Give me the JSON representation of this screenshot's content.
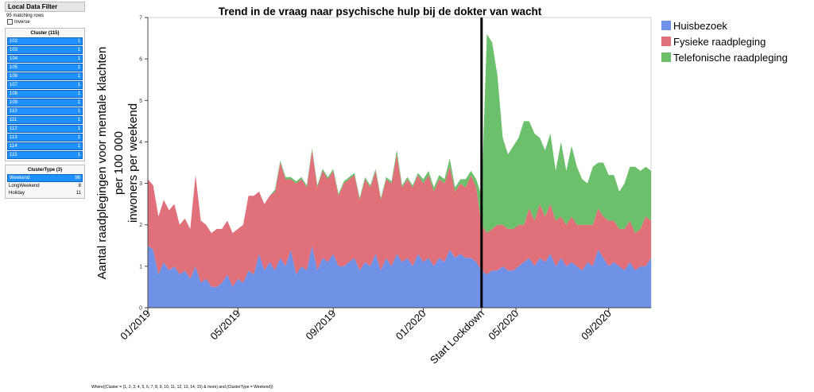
{
  "filter": {
    "header": "Local Data Filter",
    "matching": "95 matching rows",
    "inverse_label": "Inverse",
    "cluster_title": "Cluster (115)",
    "clusters": [
      {
        "label": "102",
        "count": "1"
      },
      {
        "label": "103",
        "count": "1"
      },
      {
        "label": "104",
        "count": "1"
      },
      {
        "label": "105",
        "count": "1"
      },
      {
        "label": "106",
        "count": "1"
      },
      {
        "label": "107",
        "count": "1"
      },
      {
        "label": "108",
        "count": "1"
      },
      {
        "label": "109",
        "count": "1"
      },
      {
        "label": "110",
        "count": "1"
      },
      {
        "label": "111",
        "count": "1"
      },
      {
        "label": "112",
        "count": "1"
      },
      {
        "label": "113",
        "count": "1"
      },
      {
        "label": "114",
        "count": "1"
      },
      {
        "label": "115",
        "count": "1"
      }
    ],
    "clustertype_title": "ClusterType (3)",
    "clustertypes": [
      {
        "label": "Weekend",
        "count": "96",
        "selected": true
      },
      {
        "label": "LongWeekend",
        "count": "8",
        "selected": false
      },
      {
        "label": "Holiday",
        "count": "11",
        "selected": false
      }
    ]
  },
  "where_text": "Where((Cluster = (1, 2, 3, 4, 5, 6, 7, 8, 9, 10, 11, 12, 13, 14, 15) & more) and (ClusterType = Weekend))",
  "colors": {
    "Huisbezoek": "#7092e6",
    "Fysieke raadpleging": "#e0707a",
    "Telefonische raadpleging": "#6cc06c",
    "lockdown_line": "#000000"
  },
  "chart_data": {
    "type": "area",
    "stacked": true,
    "title": "Trend in de vraag naar psychische hulp bij de dokter van wacht",
    "ylabel_lines": [
      "Aantal raadplegingen voor mentale klachten",
      "per 100 000",
      "inwoners per weekend"
    ],
    "xlabel": "",
    "ylim": [
      0,
      7
    ],
    "yticks": [
      0,
      1,
      2,
      3,
      4,
      5,
      6,
      7
    ],
    "xlim": [
      0,
      95
    ],
    "xticks": [
      {
        "x": 0,
        "label": "01/2019"
      },
      {
        "x": 17,
        "label": "05/2019"
      },
      {
        "x": 35,
        "label": "09/2019"
      },
      {
        "x": 52,
        "label": "01/2020"
      },
      {
        "x": 63,
        "label": "Start Lockdown"
      },
      {
        "x": 69.5,
        "label": "05/2020"
      },
      {
        "x": 87,
        "label": "09/2020"
      }
    ],
    "lockdown_x": 63,
    "legend_position": "right",
    "series": [
      {
        "name": "Huisbezoek",
        "values": [
          1.5,
          1.4,
          0.8,
          1.1,
          0.9,
          1.0,
          0.8,
          0.9,
          0.7,
          1.0,
          0.6,
          0.7,
          0.5,
          0.5,
          0.6,
          0.8,
          0.5,
          0.7,
          0.6,
          0.9,
          0.8,
          1.3,
          0.9,
          1.1,
          0.9,
          1.2,
          1.0,
          1.4,
          0.8,
          1.0,
          0.9,
          1.5,
          0.9,
          1.2,
          1.1,
          1.3,
          1.0,
          1.0,
          1.1,
          1.2,
          0.9,
          1.1,
          1.0,
          1.3,
          0.9,
          1.2,
          1.0,
          1.3,
          1.1,
          1.2,
          1.0,
          1.3,
          1.1,
          1.2,
          1.0,
          1.2,
          1.1,
          1.4,
          1.2,
          1.3,
          1.2,
          1.2,
          1.1,
          0.9,
          0.8,
          0.9,
          0.9,
          1.0,
          0.9,
          0.9,
          1.0,
          1.1,
          1.2,
          1.0,
          1.2,
          1.1,
          1.3,
          1.0,
          1.2,
          1.0,
          1.1,
          1.0,
          0.9,
          1.1,
          1.0,
          1.4,
          1.2,
          1.0,
          1.1,
          1.0,
          0.9,
          1.1,
          0.9,
          1.0,
          1.0,
          1.2
        ]
      },
      {
        "name": "Fysieke raadpleging",
        "values": [
          1.6,
          1.55,
          1.4,
          1.5,
          1.45,
          1.5,
          1.2,
          1.25,
          1.2,
          2.2,
          1.5,
          1.3,
          1.3,
          1.4,
          1.3,
          1.3,
          1.3,
          1.2,
          1.4,
          1.8,
          1.9,
          1.5,
          1.6,
          1.6,
          1.9,
          2.3,
          2.1,
          1.7,
          2.2,
          2.1,
          2.0,
          2.3,
          2.0,
          2.1,
          2.0,
          2.0,
          1.7,
          2.0,
          2.0,
          2.0,
          1.7,
          2.0,
          1.9,
          2.0,
          1.7,
          1.9,
          2.0,
          2.4,
          1.8,
          1.9,
          1.9,
          1.9,
          1.9,
          2.0,
          1.8,
          1.9,
          1.9,
          2.0,
          1.6,
          1.7,
          1.7,
          2.0,
          1.8,
          1.1,
          1.0,
          1.0,
          1.1,
          1.0,
          1.0,
          1.0,
          1.0,
          0.9,
          1.2,
          1.1,
          1.3,
          1.1,
          1.2,
          1.1,
          1.0,
          1.0,
          1.1,
          1.0,
          1.1,
          0.9,
          1.0,
          1.0,
          1.0,
          1.1,
          1.0,
          0.9,
          1.0,
          1.0,
          0.9,
          0.9,
          1.2,
          0.9
        ]
      },
      {
        "name": "Telefonische raadpleging",
        "values": [
          0.0,
          0.0,
          0.0,
          0.0,
          0.0,
          0.0,
          0.0,
          0.0,
          0.0,
          0.0,
          0.0,
          0.0,
          0.0,
          0.0,
          0.0,
          0.0,
          0.0,
          0.0,
          0.0,
          0.0,
          0.0,
          0.0,
          0.0,
          0.0,
          0.05,
          0.05,
          0.05,
          0.05,
          0.05,
          0.05,
          0.05,
          0.05,
          0.05,
          0.05,
          0.05,
          0.05,
          0.05,
          0.05,
          0.05,
          0.05,
          0.05,
          0.05,
          0.05,
          0.05,
          0.05,
          0.05,
          0.05,
          0.1,
          0.05,
          0.05,
          0.05,
          0.05,
          0.1,
          0.1,
          0.1,
          0.1,
          0.1,
          0.2,
          0.1,
          0.1,
          0.2,
          0.1,
          0.2,
          0.7,
          4.8,
          4.5,
          3.6,
          2.1,
          1.8,
          2.0,
          2.1,
          2.5,
          2.1,
          2.1,
          1.6,
          1.6,
          1.7,
          1.2,
          1.8,
          1.3,
          1.7,
          1.4,
          1.1,
          1.0,
          1.4,
          1.1,
          1.3,
          1.1,
          1.1,
          0.9,
          1.1,
          1.3,
          1.6,
          1.4,
          1.2,
          1.2
        ]
      }
    ]
  }
}
